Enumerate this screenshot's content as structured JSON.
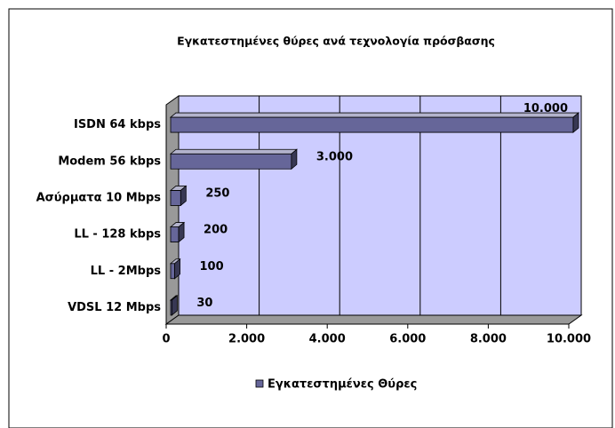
{
  "chart_data": {
    "type": "bar",
    "orientation": "horizontal",
    "three_d": true,
    "title": "Εγκατεστημένες θύρες ανά τεχνολογία πρόσβασης",
    "categories": [
      "ISDN 64 kbps",
      "Modem 56 kbps",
      "Ασύρματα 10 Mbps",
      "LL - 128 kbps",
      "LL - 2Mbps",
      "VDSL 12 Mbps"
    ],
    "series": [
      {
        "name": "Εγκατεστημένες Θύρες",
        "color": "#666699",
        "values": [
          10000,
          3000,
          250,
          200,
          100,
          30
        ],
        "value_labels": [
          "10.000",
          "3.000",
          "250",
          "200",
          "100",
          "30"
        ]
      }
    ],
    "xlim": [
      0,
      10000
    ],
    "xticks": [
      0,
      {
        "value": 2000,
        "label": "2.000"
      },
      {
        "value": 4000,
        "label": "4.000"
      },
      {
        "value": 6000,
        "label": "6.000"
      },
      {
        "value": 8000,
        "label": "8.000"
      },
      {
        "value": 10000,
        "label": "10.000"
      }
    ],
    "grid": true,
    "legend": "bottom"
  }
}
